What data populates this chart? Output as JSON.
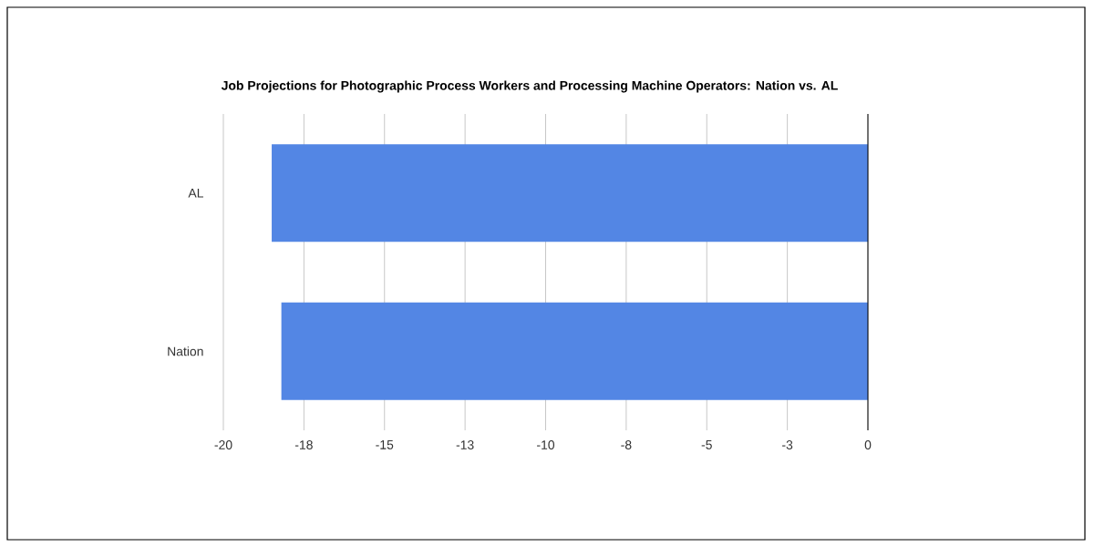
{
  "chart_data": {
    "type": "bar",
    "orientation": "horizontal",
    "title": "Job Projections for Photographic Process Workers and Processing Machine Operators: Nation vs. AL",
    "categories": [
      "AL",
      "Nation"
    ],
    "values": [
      -18.5,
      -18.2
    ],
    "color": "#5386e4",
    "xlim": [
      -20,
      0
    ],
    "xticks": [
      -20,
      {
        "value": -17.5,
        "label": "-18"
      },
      -15,
      {
        "value": -12.5,
        "label": "-13"
      },
      -10,
      {
        "value": -7.5,
        "label": "-8"
      },
      -5,
      {
        "value": -2.5,
        "label": "-3"
      },
      0
    ],
    "grid": "x"
  }
}
